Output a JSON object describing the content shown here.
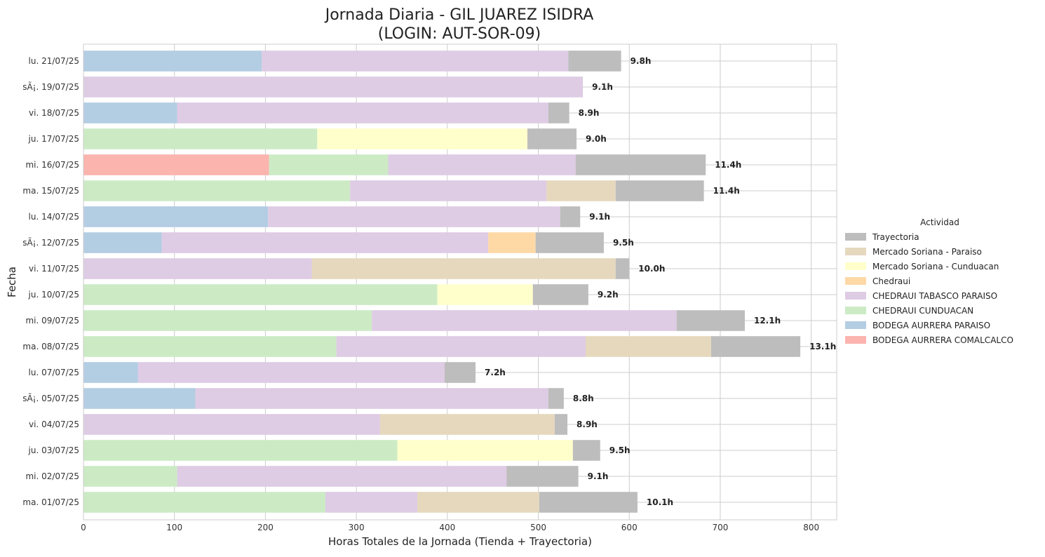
{
  "chart_data": {
    "type": "bar",
    "orientation": "horizontal",
    "stacked": true,
    "title_line1": "Jornada Diaria - GIL JUAREZ ISIDRA",
    "title_line2": "(LOGIN: AUT-SOR-09)",
    "xlabel": "Horas Totales de la Jornada (Tienda + Trayectoria)",
    "ylabel": "Fecha",
    "xlim": [
      0,
      828
    ],
    "xticks": [
      0,
      100,
      200,
      300,
      400,
      500,
      600,
      700,
      800
    ],
    "grid": true,
    "legend_title": "Actividad",
    "legend_position": "right",
    "categories": [
      "lu. 21/07/25",
      "sÃ¡. 19/07/25",
      "vi. 18/07/25",
      "ju. 17/07/25",
      "mi. 16/07/25",
      "ma. 15/07/25",
      "lu. 14/07/25",
      "sÃ¡. 12/07/25",
      "vi. 11/07/25",
      "ju. 10/07/25",
      "mi. 09/07/25",
      "ma. 08/07/25",
      "lu. 07/07/25",
      "sÃ¡. 05/07/25",
      "vi. 04/07/25",
      "ju. 03/07/25",
      "mi. 02/07/25",
      "ma. 01/07/25"
    ],
    "totals_labels": [
      "9.8h",
      "9.1h",
      "8.9h",
      "9.0h",
      "11.4h",
      "11.4h",
      "9.1h",
      "9.5h",
      "10.0h",
      "9.2h",
      "12.1h",
      "13.1h",
      "7.2h",
      "8.8h",
      "8.9h",
      "9.5h",
      "9.1h",
      "10.1h"
    ],
    "series": [
      {
        "name": "BODEGA AURRERA COMALCALCO",
        "color": "#fbb4ae",
        "values": [
          0,
          0,
          0,
          0,
          204,
          0,
          0,
          0,
          0,
          0,
          0,
          0,
          0,
          0,
          0,
          0,
          0,
          0
        ]
      },
      {
        "name": "BODEGA AURRERA PARAISO",
        "color": "#b3cde3",
        "values": [
          196,
          0,
          103,
          0,
          0,
          0,
          203,
          86,
          0,
          0,
          0,
          0,
          60,
          123,
          0,
          0,
          0,
          0
        ]
      },
      {
        "name": "CHEDRAUI CUNDUACAN",
        "color": "#ccebc5",
        "values": [
          0,
          0,
          0,
          257,
          131,
          293,
          0,
          0,
          0,
          389,
          317,
          278,
          0,
          0,
          0,
          345,
          103,
          266
        ]
      },
      {
        "name": "CHEDRAUI TABASCO PARAISO",
        "color": "#decbe4",
        "values": [
          337,
          549,
          408,
          0,
          206,
          216,
          321,
          359,
          251,
          0,
          335,
          274,
          337,
          388,
          326,
          0,
          362,
          101
        ]
      },
      {
        "name": "Chedraui",
        "color": "#fed9a6",
        "values": [
          0,
          0,
          0,
          0,
          0,
          0,
          0,
          52,
          0,
          0,
          0,
          0,
          0,
          0,
          0,
          0,
          0,
          0
        ]
      },
      {
        "name": "Mercado Soriana - Cunduacan",
        "color": "#ffffcc",
        "values": [
          0,
          0,
          0,
          231,
          0,
          0,
          0,
          0,
          0,
          105,
          0,
          0,
          0,
          0,
          0,
          193,
          0,
          0
        ]
      },
      {
        "name": "Mercado Soriana - Paraiso",
        "color": "#e5d8bd",
        "values": [
          0,
          0,
          0,
          0,
          0,
          76,
          0,
          0,
          334,
          0,
          0,
          138,
          0,
          0,
          192,
          0,
          0,
          134
        ]
      },
      {
        "name": "Trayectoria",
        "color": "#bdbdbd",
        "values": [
          58,
          0,
          23,
          54,
          143,
          97,
          22,
          75,
          15,
          61,
          75,
          98,
          34,
          17,
          14,
          30,
          79,
          108
        ]
      }
    ]
  }
}
